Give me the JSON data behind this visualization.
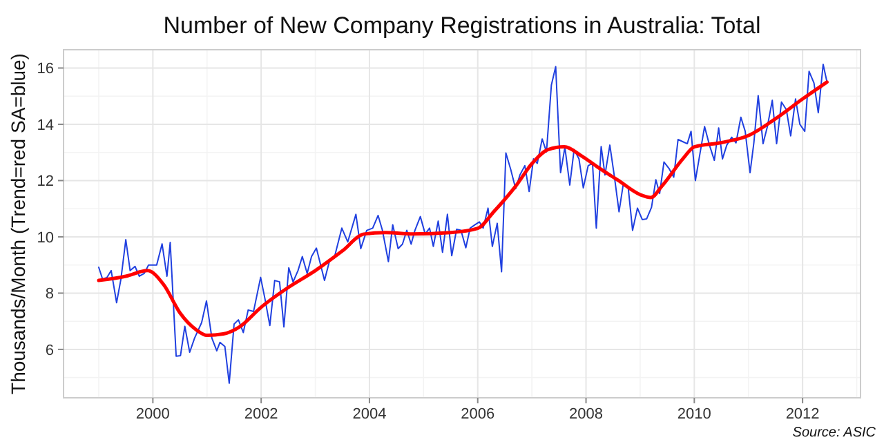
{
  "chart_data": {
    "type": "line",
    "title": "Number of New Company Registrations in Australia: Total",
    "ylabel": "Thousands/Month (Trend=red SA=blue)",
    "annotations": [
      "Source: ASIC"
    ],
    "xlim": [
      1998.35,
      2013.07
    ],
    "ylim": [
      4.28,
      16.65
    ],
    "xticks": [
      2000,
      2002,
      2004,
      2006,
      2008,
      2010,
      2012
    ],
    "yticks": [
      6,
      8,
      10,
      12,
      14,
      16
    ],
    "grid": true,
    "series": [
      {
        "color": "#2040e0",
        "x": [
          1999.0,
          1999.07,
          1999.15,
          1999.23,
          1999.33,
          1999.41,
          1999.5,
          1999.58,
          1999.67,
          1999.75,
          1999.84,
          1999.92,
          2000.07,
          2000.17,
          2000.26,
          2000.32,
          2000.43,
          2000.51,
          2000.59,
          2000.68,
          2000.77,
          2000.9,
          2000.99,
          2001.09,
          2001.18,
          2001.24,
          2001.33,
          2001.41,
          2001.5,
          2001.58,
          2001.67,
          2001.76,
          2001.86,
          2001.99,
          2002.07,
          2002.16,
          2002.25,
          2002.34,
          2002.42,
          2002.51,
          2002.59,
          2002.68,
          2002.76,
          2002.85,
          2002.93,
          2003.02,
          2003.17,
          2003.27,
          2003.35,
          2003.49,
          2003.6,
          2003.75,
          2003.84,
          2003.95,
          2004.06,
          2004.16,
          2004.24,
          2004.35,
          2004.43,
          2004.53,
          2004.61,
          2004.69,
          2004.77,
          2004.84,
          2004.94,
          2005.03,
          2005.11,
          2005.18,
          2005.27,
          2005.35,
          2005.44,
          2005.52,
          2005.61,
          2005.69,
          2005.78,
          2005.86,
          2005.95,
          2006.03,
          2006.1,
          2006.19,
          2006.27,
          2006.36,
          2006.44,
          2006.52,
          2006.61,
          2006.7,
          2006.78,
          2006.87,
          2006.95,
          2007.03,
          2007.1,
          2007.19,
          2007.27,
          2007.36,
          2007.44,
          2007.53,
          2007.61,
          2007.7,
          2007.78,
          2007.87,
          2007.95,
          2008.04,
          2008.12,
          2008.19,
          2008.28,
          2008.35,
          2008.44,
          2008.52,
          2008.61,
          2008.69,
          2008.78,
          2008.86,
          2008.95,
          2009.04,
          2009.12,
          2009.21,
          2009.29,
          2009.36,
          2009.44,
          2009.53,
          2009.62,
          2009.7,
          2009.79,
          2009.87,
          2009.94,
          2010.02,
          2010.11,
          2010.19,
          2010.28,
          2010.37,
          2010.45,
          2010.52,
          2010.6,
          2010.69,
          2010.77,
          2010.86,
          2010.94,
          2011.03,
          2011.1,
          2011.18,
          2011.27,
          2011.35,
          2011.44,
          2011.52,
          2011.61,
          2011.7,
          2011.78,
          2011.87,
          2011.95,
          2012.04,
          2012.12,
          2012.21,
          2012.29,
          2012.38,
          2012.45
        ],
        "values": [
          8.92,
          8.5,
          8.55,
          8.8,
          7.66,
          8.5,
          9.9,
          8.8,
          8.95,
          8.6,
          8.7,
          9.0,
          9.0,
          9.75,
          8.6,
          9.8,
          5.76,
          5.78,
          6.82,
          5.9,
          6.4,
          6.95,
          7.72,
          6.4,
          5.95,
          6.25,
          6.1,
          4.8,
          6.9,
          7.05,
          6.6,
          7.4,
          7.35,
          8.56,
          7.8,
          6.85,
          8.45,
          8.4,
          6.8,
          8.9,
          8.4,
          8.8,
          9.3,
          8.7,
          9.3,
          9.6,
          8.45,
          9.2,
          9.25,
          10.31,
          9.82,
          10.8,
          9.58,
          10.23,
          10.31,
          10.76,
          10.23,
          9.12,
          10.43,
          9.58,
          9.74,
          10.23,
          9.74,
          10.23,
          10.72,
          10.1,
          10.31,
          9.66,
          10.56,
          9.45,
          10.8,
          9.33,
          10.27,
          10.23,
          9.61,
          10.31,
          10.43,
          10.53,
          10.31,
          11.02,
          9.66,
          10.48,
          8.76,
          12.98,
          12.39,
          11.71,
          12.2,
          12.53,
          11.61,
          12.77,
          12.61,
          13.48,
          13.02,
          15.39,
          16.05,
          12.28,
          13.18,
          11.84,
          13.1,
          12.77,
          11.74,
          12.53,
          12.61,
          10.31,
          13.21,
          12.2,
          13.26,
          12.2,
          10.89,
          11.9,
          11.74,
          10.23,
          11.02,
          10.61,
          10.64,
          11.05,
          12.03,
          11.54,
          12.66,
          12.44,
          12.12,
          13.46,
          13.38,
          13.31,
          13.75,
          12.0,
          13.02,
          13.92,
          13.26,
          12.72,
          13.87,
          12.77,
          13.26,
          13.54,
          13.34,
          14.25,
          13.75,
          12.28,
          13.34,
          15.02,
          13.31,
          13.92,
          14.85,
          13.31,
          14.79,
          14.52,
          13.59,
          14.9,
          14.0,
          13.75,
          15.88,
          15.47,
          14.41,
          16.13,
          15.51
        ]
      },
      {
        "color": "#ff0000",
        "x": [
          1999.0,
          1999.5,
          1999.9,
          2000.2,
          2000.5,
          2000.8,
          2001.0,
          2001.3,
          2001.6,
          2002.0,
          2002.5,
          2003.0,
          2003.5,
          2003.9,
          2004.3,
          2004.8,
          2005.5,
          2006.0,
          2006.3,
          2006.7,
          2007.0,
          2007.3,
          2007.6,
          2007.9,
          2008.2,
          2008.6,
          2009.0,
          2009.2,
          2009.4,
          2009.8,
          2010.0,
          2010.5,
          2011.0,
          2011.5,
          2012.0,
          2012.45
        ],
        "values": [
          8.45,
          8.6,
          8.8,
          8.3,
          7.3,
          6.7,
          6.5,
          6.55,
          6.8,
          7.5,
          8.2,
          8.8,
          9.5,
          10.1,
          10.15,
          10.1,
          10.15,
          10.3,
          10.9,
          11.8,
          12.6,
          13.1,
          13.2,
          12.9,
          12.5,
          12.0,
          11.5,
          11.4,
          11.8,
          12.8,
          13.2,
          13.35,
          13.6,
          14.2,
          14.9,
          15.5
        ]
      }
    ]
  }
}
